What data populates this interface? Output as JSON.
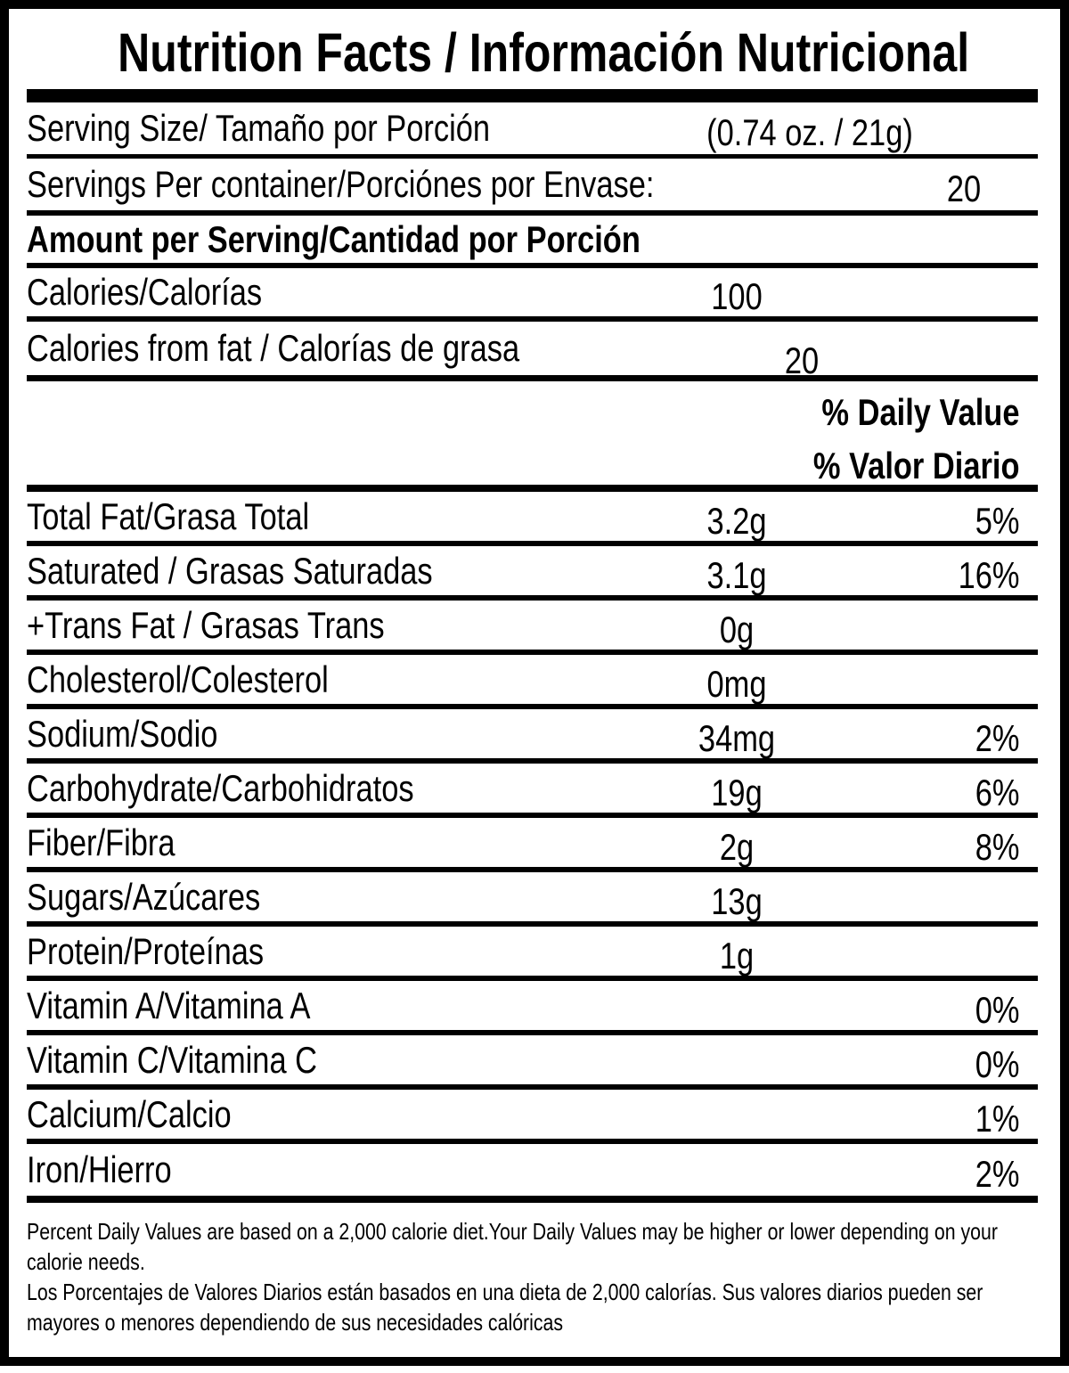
{
  "title": "Nutrition Facts / Información Nutricional",
  "colors": {
    "text": "#000000",
    "background": "#ffffff",
    "rules": "#000000"
  },
  "top_rows": [
    {
      "id": "serving-size",
      "label": "Serving Size/ Tamaño por Porción",
      "value": "(0.74 oz. / 21g)",
      "pct": "",
      "bold": false
    },
    {
      "id": "servings-per-container",
      "label": "Servings Per container/Porciónes por Envase:",
      "value": "20",
      "pct": "",
      "bold": false
    },
    {
      "id": "amount-heading",
      "label": "Amount per Serving/Cantidad por Porción",
      "value": "",
      "pct": "",
      "bold": true
    },
    {
      "id": "calories",
      "label": "Calories/Calorías",
      "value": "100",
      "pct": "",
      "bold": false
    },
    {
      "id": "calories-from-fat",
      "label": "Calories from fat / Calorías de grasa",
      "value": "20",
      "pct": "",
      "bold": false
    }
  ],
  "daily_value_header": {
    "en": "% Daily Value",
    "es": "% Valor Diario"
  },
  "nutrient_rows": [
    {
      "id": "total-fat",
      "label": "Total Fat/Grasa Total",
      "value": "3.2g",
      "pct": "5%"
    },
    {
      "id": "saturated-fat",
      "label": "Saturated / Grasas Saturadas",
      "value": "3.1g",
      "pct": "16%"
    },
    {
      "id": "trans-fat",
      "label": "+Trans Fat / Grasas Trans",
      "value": "0g",
      "pct": ""
    },
    {
      "id": "cholesterol",
      "label": "Cholesterol/Colesterol",
      "value": "0mg",
      "pct": ""
    },
    {
      "id": "sodium",
      "label": "Sodium/Sodio",
      "value": "34mg",
      "pct": "2%"
    },
    {
      "id": "carbohydrate",
      "label": "Carbohydrate/Carbohidratos",
      "value": "19g",
      "pct": "6%"
    },
    {
      "id": "fiber",
      "label": "Fiber/Fibra",
      "value": "2g",
      "pct": "8%"
    },
    {
      "id": "sugars",
      "label": "Sugars/Azúcares",
      "value": "13g",
      "pct": ""
    },
    {
      "id": "protein",
      "label": "Protein/Proteínas",
      "value": "1g",
      "pct": ""
    },
    {
      "id": "vitamin-a",
      "label": "Vitamin A/Vitamina A",
      "value": "",
      "pct": "0%"
    },
    {
      "id": "vitamin-c",
      "label": "Vitamin C/Vitamina C",
      "value": "",
      "pct": "0%"
    },
    {
      "id": "calcium",
      "label": "Calcium/Calcio",
      "value": "",
      "pct": "1%"
    },
    {
      "id": "iron",
      "label": "Iron/Hierro",
      "value": "",
      "pct": "2%"
    }
  ],
  "footnotes": {
    "en": "Percent Daily Values are based on a 2,000 calorie diet.Your Daily Values may be higher or lower depending on your\ncalorie needs.",
    "es": "Los Porcentajes de Valores Diarios están basados en una dieta de 2,000 calorías. Sus valores diarios pueden ser\nmayores o menores dependiendo de sus necesidades calóricas"
  }
}
